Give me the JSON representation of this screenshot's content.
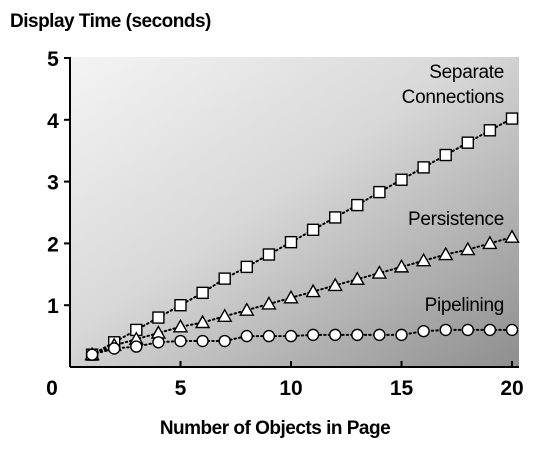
{
  "chart_data": {
    "type": "line",
    "ylabel": "Display Time (seconds)",
    "xlabel": "Number of Objects in Page",
    "xlim": [
      0,
      20
    ],
    "ylim": [
      0,
      5
    ],
    "x_origin_label": "0",
    "xticks": [
      {
        "value": 5,
        "label": "5"
      },
      {
        "value": 10,
        "label": "10"
      },
      {
        "value": 15,
        "label": "15"
      },
      {
        "value": 20,
        "label": "20"
      }
    ],
    "yticks": [
      {
        "value": 1,
        "label": "1"
      },
      {
        "value": 2,
        "label": "2"
      },
      {
        "value": 3,
        "label": "3"
      },
      {
        "value": 4,
        "label": "4"
      },
      {
        "value": 5,
        "label": "5"
      }
    ],
    "grid": false,
    "x": [
      1,
      2,
      3,
      4,
      5,
      6,
      7,
      8,
      9,
      10,
      11,
      12,
      13,
      14,
      15,
      16,
      17,
      18,
      19,
      20
    ],
    "series": [
      {
        "name": "Separate Connections",
        "label_lines": [
          "Separate",
          "Connections"
        ],
        "marker": "square",
        "values": [
          0.2,
          0.4,
          0.6,
          0.8,
          1.0,
          1.2,
          1.43,
          1.62,
          1.82,
          2.02,
          2.22,
          2.42,
          2.62,
          2.83,
          3.03,
          3.23,
          3.43,
          3.63,
          3.83,
          4.02
        ]
      },
      {
        "name": "Persistence",
        "label_lines": [
          "Persistence"
        ],
        "marker": "triangle",
        "values": [
          0.2,
          0.35,
          0.45,
          0.55,
          0.65,
          0.72,
          0.82,
          0.92,
          1.02,
          1.12,
          1.22,
          1.32,
          1.42,
          1.52,
          1.62,
          1.72,
          1.82,
          1.9,
          2.0,
          2.1
        ]
      },
      {
        "name": "Pipelining",
        "label_lines": [
          "Pipelining"
        ],
        "marker": "circle",
        "values": [
          0.2,
          0.3,
          0.33,
          0.4,
          0.42,
          0.42,
          0.42,
          0.5,
          0.5,
          0.5,
          0.52,
          0.52,
          0.52,
          0.52,
          0.52,
          0.58,
          0.6,
          0.6,
          0.6,
          0.6
        ]
      }
    ]
  }
}
